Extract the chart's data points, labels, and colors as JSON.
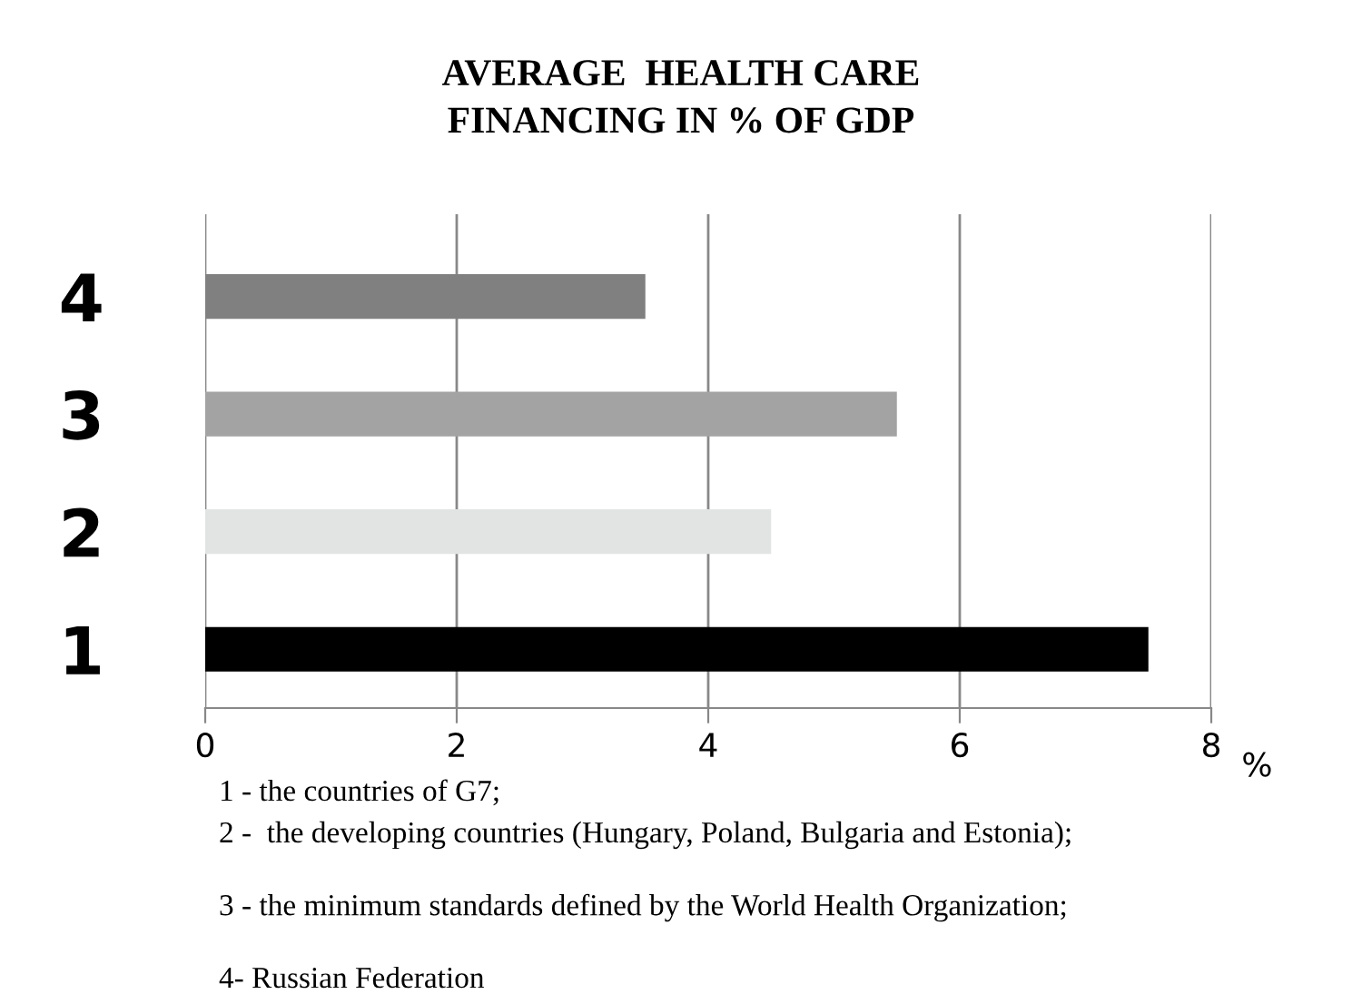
{
  "chart_data": {
    "type": "bar",
    "orientation": "horizontal",
    "title": "AVERAGE  HEALTH CARE\nFINANCING IN % OF GDP",
    "xlabel": "%",
    "categories": [
      "4",
      "3",
      "2",
      "1"
    ],
    "values": [
      3.5,
      5.5,
      4.5,
      7.5
    ],
    "colors": [
      "#808080",
      "#a3a3a3",
      "#e2e4e4",
      "#000000"
    ],
    "xlim": [
      0,
      8
    ],
    "xticks": [
      0,
      2,
      4,
      6,
      8
    ],
    "grid": "x",
    "legend": false,
    "annotations": [
      "1 - the countries of G7;",
      "2 -  the developing countries (Hungary, Poland, Bulgaria and Estonia);",
      "3 - the minimum standards defined by the World Health Organization;",
      "4- Russian Federation"
    ]
  }
}
